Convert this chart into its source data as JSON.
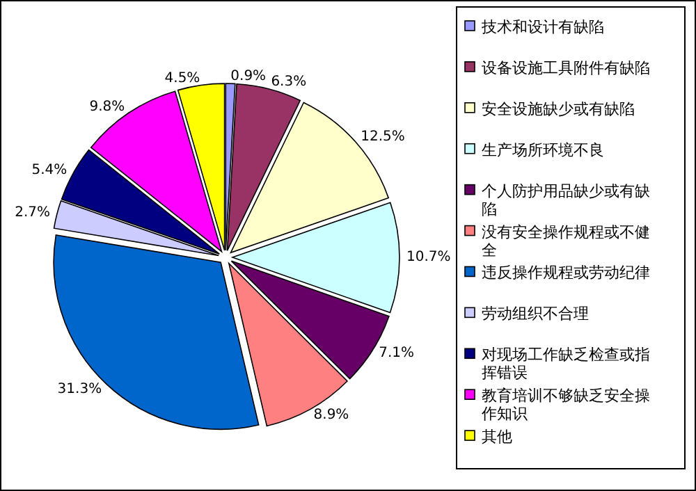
{
  "chart_data": {
    "type": "pie",
    "categories": [
      "技术和设计有缺陷",
      "设备设施工具附件有缺陷",
      "安全设施缺少或有缺陷",
      "生产场所环境不良",
      "个人防护用品缺少或有缺陷",
      "没有安全操作规程或不健全",
      "违反操作规程或劳动纪律",
      "劳动组织不合理",
      "对现场工作缺乏检查或指挥错误",
      "教育培训不够缺乏安全操作知识",
      "其他"
    ],
    "values": [
      0.9,
      6.3,
      12.5,
      10.7,
      7.1,
      8.9,
      31.3,
      2.7,
      5.4,
      9.8,
      4.5
    ],
    "value_labels": [
      "0.9%",
      "6.3%",
      "12.5%",
      "10.7%",
      "7.1%",
      "8.9%",
      "31.3%",
      "2.7%",
      "5.4%",
      "9.8%",
      "4.5%"
    ],
    "colors": [
      "#9999ff",
      "#993366",
      "#ffffcc",
      "#ccffff",
      "#660066",
      "#ff8080",
      "#0066cc",
      "#ccccff",
      "#000080",
      "#ff00ff",
      "#ffff00"
    ],
    "legend": "right"
  }
}
